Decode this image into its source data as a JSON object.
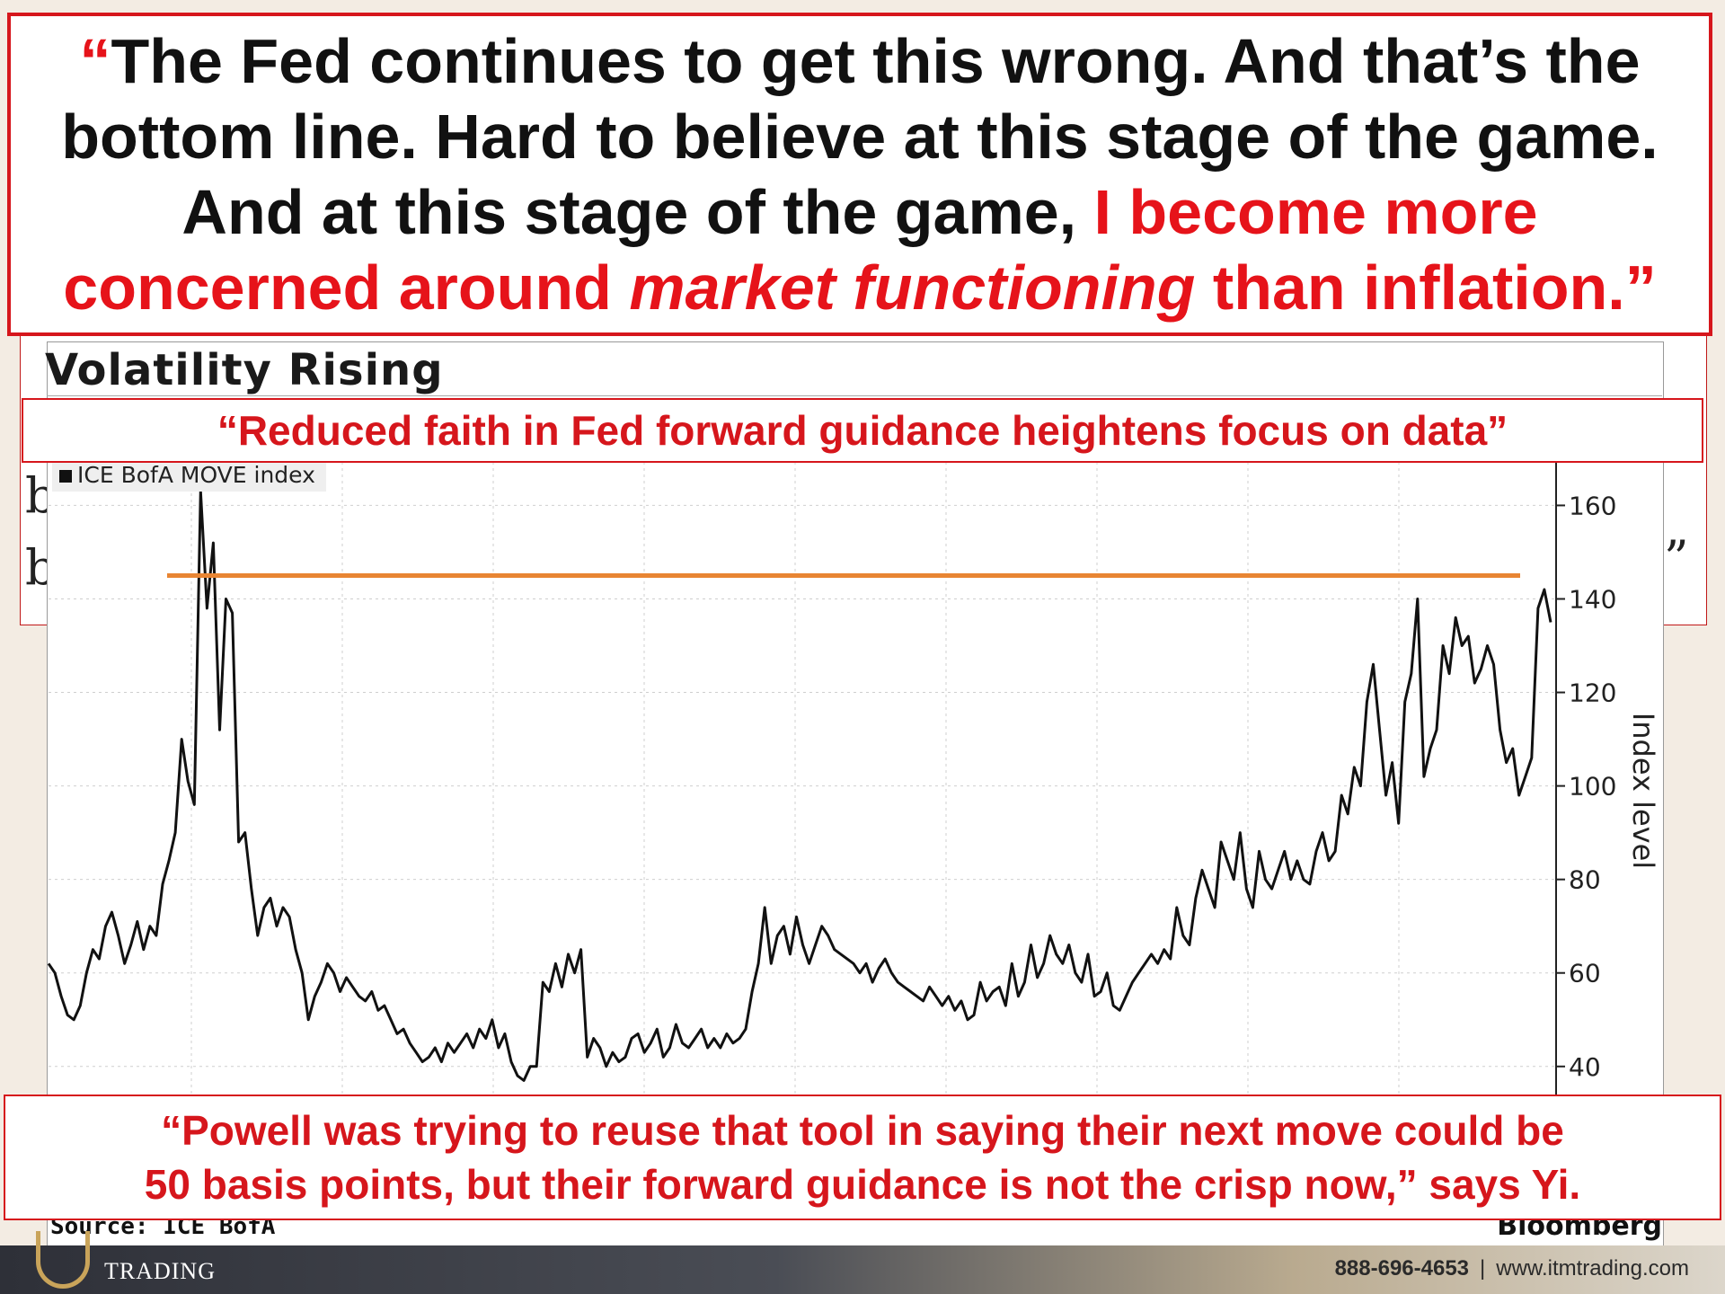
{
  "quote": {
    "line1": "“The Fed continues to get this wrong. And that’s the",
    "line2": "bottom line. Hard to believe at this stage of the game.",
    "line3_black": "And at this stage of the game, ",
    "line3_red": "I become more",
    "line4_red": "concerned around ",
    "line4_italic": "market functioning",
    "line4_end": " than inflation.”"
  },
  "subtitle_quote": "“Reduced faith in Fed forward guidance heightens focus on data”",
  "bottom_quote": {
    "line1": "“Powell was trying to reuse that tool in saying their next move could be",
    "line2": "50 basis points, but their forward guidance is not the crisp now,” says Yi."
  },
  "chart_data": {
    "type": "line",
    "title": "Volatility Rising",
    "legend": "ICE BofA MOVE index",
    "ylabel": "Index level",
    "yticks": [
      "40",
      "60",
      "80",
      "100",
      "120",
      "140",
      "160"
    ],
    "ylim": [
      34,
      172
    ],
    "y_axis_side": "right",
    "reference_line": 145,
    "series": [
      {
        "name": "ICE BofA MOVE index",
        "color": "#111111",
        "values": [
          62,
          60,
          55,
          51,
          50,
          53,
          60,
          65,
          63,
          70,
          73,
          68,
          62,
          66,
          71,
          65,
          70,
          68,
          79,
          84,
          90,
          110,
          101,
          96,
          163,
          138,
          152,
          112,
          140,
          137,
          88,
          90,
          78,
          68,
          74,
          76,
          70,
          74,
          72,
          65,
          60,
          50,
          55,
          58,
          62,
          60,
          56,
          59,
          57,
          55,
          54,
          56,
          52,
          53,
          50,
          47,
          48,
          45,
          43,
          41,
          42,
          44,
          41,
          45,
          43,
          45,
          47,
          44,
          48,
          46,
          50,
          44,
          47,
          41,
          38,
          37,
          40,
          40,
          58,
          56,
          62,
          57,
          64,
          60,
          65,
          42,
          46,
          44,
          40,
          43,
          41,
          42,
          46,
          47,
          43,
          45,
          48,
          42,
          44,
          49,
          45,
          44,
          46,
          48,
          44,
          46,
          44,
          47,
          45,
          46,
          48,
          56,
          62,
          74,
          62,
          68,
          70,
          64,
          72,
          66,
          62,
          66,
          70,
          68,
          65,
          64,
          63,
          62,
          60,
          62,
          58,
          61,
          63,
          60,
          58,
          57,
          56,
          55,
          54,
          57,
          55,
          53,
          55,
          52,
          54,
          50,
          51,
          58,
          54,
          56,
          57,
          53,
          62,
          55,
          58,
          66,
          59,
          62,
          68,
          64,
          62,
          66,
          60,
          58,
          64,
          55,
          56,
          60,
          53,
          52,
          55,
          58,
          60,
          62,
          64,
          62,
          65,
          63,
          74,
          68,
          66,
          76,
          82,
          78,
          74,
          88,
          84,
          80,
          90,
          78,
          74,
          86,
          80,
          78,
          82,
          86,
          80,
          84,
          80,
          79,
          86,
          90,
          84,
          86,
          98,
          94,
          104,
          100,
          118,
          126,
          112,
          98,
          105,
          92,
          118,
          124,
          140,
          102,
          108,
          112,
          130,
          124,
          136,
          130,
          132,
          122,
          125,
          130,
          126,
          112,
          105,
          108,
          98,
          102,
          106,
          138,
          142,
          135
        ]
      }
    ]
  },
  "source": "Source: ICE BofA",
  "brand": "Bloomberg",
  "footer": {
    "logo": "TRADING",
    "phone": "888-696-4653",
    "separator": "|",
    "website": "www.itmtrading.com"
  },
  "colors": {
    "accent_red": "#e6131a",
    "reference_line": "#e88533"
  }
}
